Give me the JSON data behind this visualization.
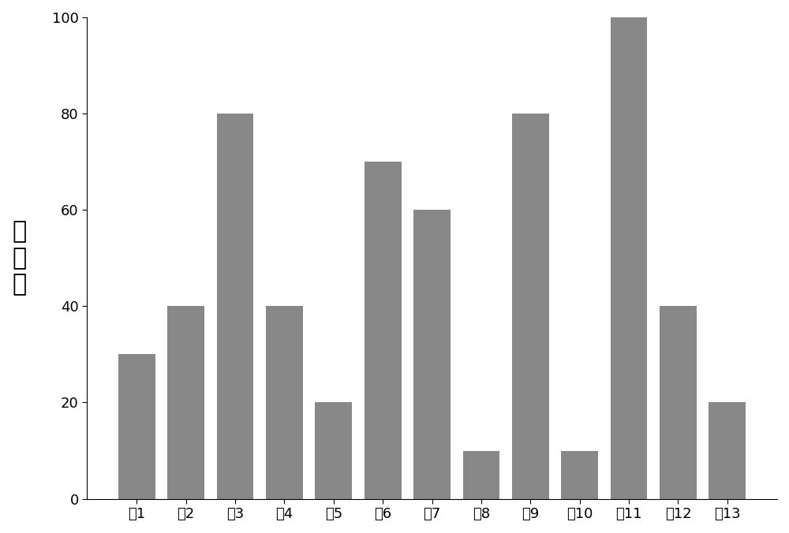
{
  "categories": [
    "脔1",
    "脔2",
    "脔3",
    "脔4",
    "脔5",
    "脔6",
    "脔7",
    "脔8",
    "脔9",
    "腄10",
    "腄11",
    "腄12",
    "腄13"
  ],
  "values": [
    30,
    40,
    80,
    40,
    20,
    70,
    60,
    10,
    80,
    10,
    100,
    40,
    20
  ],
  "bar_color": "#888888",
  "ylabel_chars": [
    "识",
    "别",
    "频"
  ],
  "ylim": [
    0,
    100
  ],
  "yticks": [
    0,
    20,
    40,
    60,
    80,
    100
  ],
  "ylabel_fontsize": 22,
  "tick_fontsize": 13,
  "bar_width": 0.75,
  "background_color": "#ffffff",
  "edge_color": "none",
  "figsize": [
    10.0,
    6.76
  ],
  "dpi": 100
}
